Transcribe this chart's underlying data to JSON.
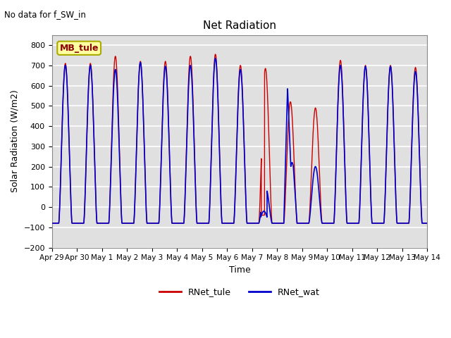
{
  "title": "Net Radiation",
  "xlabel": "Time",
  "ylabel": "Solar Radiation (W/m2)",
  "ylim": [
    -200,
    850
  ],
  "yticks": [
    -200,
    -100,
    0,
    100,
    200,
    300,
    400,
    500,
    600,
    700,
    800
  ],
  "color_tule": "#cc0000",
  "color_wat": "#0000cc",
  "legend_label_tule": "RNet_tule",
  "legend_label_wat": "RNet_wat",
  "annotation_text": "No data for f_SW_in",
  "location_label": "MB_tule",
  "background_color": "#e0e0e0",
  "grid_color": "white",
  "n_days": 15,
  "night_val": -80,
  "peaks_tule": [
    710,
    710,
    745,
    720,
    720,
    745,
    755,
    700,
    685,
    520,
    490,
    725,
    700,
    700,
    690
  ],
  "peaks_wat": [
    700,
    700,
    680,
    715,
    695,
    700,
    735,
    680,
    100,
    590,
    200,
    700,
    695,
    695,
    670
  ],
  "sunrise": 0.27,
  "sunset": 0.8,
  "day8_wat_dip_level": -50,
  "day9_tule_max": 520,
  "day9_wat_spikes": [
    590,
    200
  ],
  "figsize": [
    6.4,
    4.8
  ],
  "dpi": 100
}
